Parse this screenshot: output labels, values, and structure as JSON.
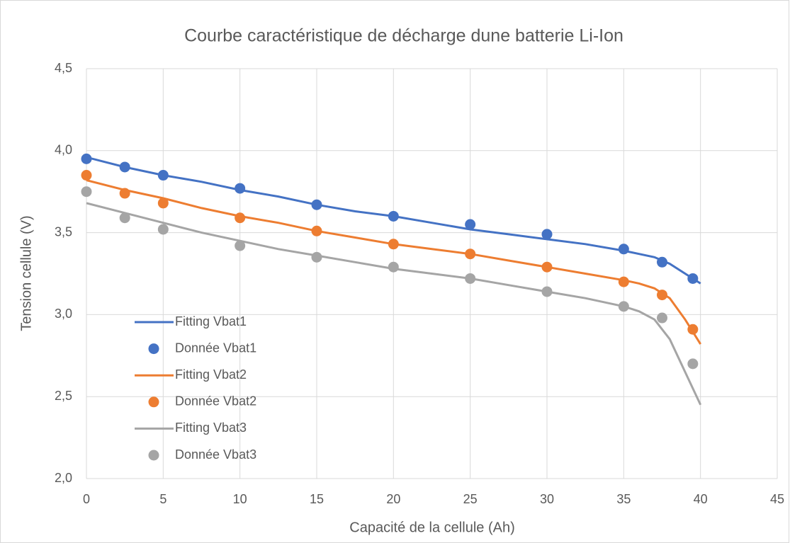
{
  "chart_data": {
    "type": "line",
    "title": "Courbe caractéristique de décharge dune batterie Li-Ion",
    "xlabel": "Capacité de la cellule (Ah)",
    "ylabel": "Tension cellule (V)",
    "xlim": [
      0,
      45
    ],
    "xticks": [
      0,
      5,
      10,
      15,
      20,
      25,
      30,
      35,
      40,
      45
    ],
    "ylim": [
      2.0,
      4.5
    ],
    "yticks": [
      {
        "value": 2.0,
        "label": "2,0"
      },
      {
        "value": 2.5,
        "label": "2,5"
      },
      {
        "value": 3.0,
        "label": "3,0"
      },
      {
        "value": 3.5,
        "label": "3,5"
      },
      {
        "value": 4.0,
        "label": "4,0"
      },
      {
        "value": 4.5,
        "label": "4,5"
      }
    ],
    "grid": true,
    "legend": "lower left",
    "series": [
      {
        "name": "Fitting Vbat1",
        "type": "line",
        "color": "#4472c4",
        "x": [
          0,
          2.5,
          5,
          7.5,
          10,
          12.5,
          15,
          17.5,
          20,
          22.5,
          25,
          27.5,
          30,
          32.5,
          35,
          36,
          37,
          38,
          39,
          40
        ],
        "values": [
          3.96,
          3.9,
          3.85,
          3.81,
          3.76,
          3.72,
          3.67,
          3.63,
          3.6,
          3.56,
          3.52,
          3.49,
          3.46,
          3.43,
          3.39,
          3.37,
          3.35,
          3.31,
          3.25,
          3.19
        ]
      },
      {
        "name": "Donnée Vbat1",
        "type": "scatter",
        "color": "#4472c4",
        "x": [
          0,
          2.5,
          5,
          10,
          15,
          20,
          25,
          30,
          35,
          37.5,
          39.5
        ],
        "values": [
          3.95,
          3.9,
          3.85,
          3.77,
          3.67,
          3.6,
          3.55,
          3.49,
          3.4,
          3.32,
          3.22
        ]
      },
      {
        "name": "Fitting Vbat2",
        "type": "line",
        "color": "#ed7d31",
        "x": [
          0,
          2.5,
          5,
          7.5,
          10,
          12.5,
          15,
          17.5,
          20,
          22.5,
          25,
          27.5,
          30,
          32.5,
          35,
          36,
          37,
          38,
          39,
          40
        ],
        "values": [
          3.82,
          3.76,
          3.71,
          3.65,
          3.6,
          3.56,
          3.51,
          3.47,
          3.43,
          3.4,
          3.37,
          3.33,
          3.29,
          3.25,
          3.21,
          3.19,
          3.16,
          3.1,
          2.97,
          2.82
        ]
      },
      {
        "name": "Donnée Vbat2",
        "type": "scatter",
        "color": "#ed7d31",
        "x": [
          0,
          2.5,
          5,
          10,
          15,
          20,
          25,
          30,
          35,
          37.5,
          39.5
        ],
        "values": [
          3.85,
          3.74,
          3.68,
          3.59,
          3.51,
          3.43,
          3.37,
          3.29,
          3.2,
          3.12,
          2.91
        ]
      },
      {
        "name": "Fitting Vbat3",
        "type": "line",
        "color": "#a5a5a5",
        "x": [
          0,
          2.5,
          5,
          7.5,
          10,
          12.5,
          15,
          17.5,
          20,
          22.5,
          25,
          27.5,
          30,
          32.5,
          35,
          36,
          37,
          38,
          39,
          40
        ],
        "values": [
          3.68,
          3.62,
          3.56,
          3.5,
          3.45,
          3.4,
          3.36,
          3.32,
          3.28,
          3.25,
          3.22,
          3.18,
          3.14,
          3.1,
          3.05,
          3.02,
          2.97,
          2.85,
          2.65,
          2.45
        ]
      },
      {
        "name": "Donnée Vbat3",
        "type": "scatter",
        "color": "#a5a5a5",
        "x": [
          0,
          2.5,
          5,
          10,
          15,
          20,
          25,
          30,
          35,
          37.5,
          39.5
        ],
        "values": [
          3.75,
          3.59,
          3.52,
          3.42,
          3.35,
          3.29,
          3.22,
          3.14,
          3.05,
          2.98,
          2.7
        ]
      }
    ]
  }
}
